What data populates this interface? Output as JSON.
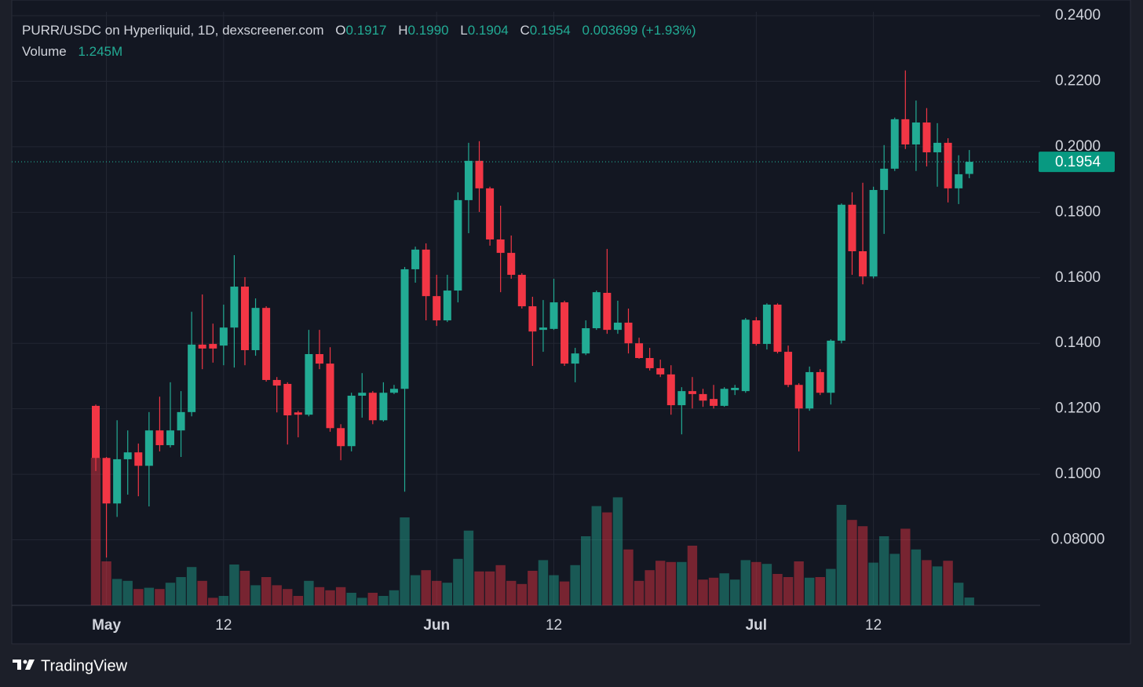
{
  "header": {
    "title": "PURR/USDC on Hyperliquid, 1D, dexscreener.com",
    "open_label": "O",
    "open": "0.1917",
    "high_label": "H",
    "high": "0.1990",
    "low_label": "L",
    "low": "0.1904",
    "close_label": "C",
    "close": "0.1954",
    "change": "0.003699 (+1.93%)",
    "volume_label": "Volume",
    "volume": "1.245M"
  },
  "brand": "TradingView",
  "chart_data": {
    "type": "candlestick",
    "categories": [
      null,
      "May",
      null,
      null,
      null,
      null,
      null,
      null,
      null,
      null,
      null,
      null,
      "12",
      null,
      null,
      null,
      null,
      null,
      null,
      null,
      null,
      null,
      null,
      null,
      null,
      null,
      null,
      null,
      null,
      null,
      null,
      null,
      "Jun",
      null,
      null,
      null,
      null,
      null,
      null,
      null,
      null,
      null,
      null,
      "12",
      null,
      null,
      null,
      null,
      null,
      null,
      null,
      null,
      null,
      null,
      null,
      null,
      null,
      null,
      null,
      null,
      null,
      null,
      "Jul",
      null,
      null,
      null,
      null,
      null,
      null,
      null,
      null,
      null,
      null,
      "12",
      null,
      null,
      null,
      null,
      null,
      null,
      null,
      null,
      null
    ],
    "open": [
      0.1209,
      0.105,
      0.0911,
      0.1046,
      0.1067,
      0.1026,
      0.1134,
      0.1089,
      0.1134,
      0.119,
      0.1396,
      0.1398,
      0.1393,
      0.1448,
      0.1573,
      0.1379,
      0.1508,
      0.1288,
      0.1276,
      0.1189,
      0.1182,
      0.1367,
      0.1338,
      0.1141,
      0.1086,
      0.124,
      0.1249,
      0.1165,
      0.1249,
      0.1261,
      0.1626,
      0.1686,
      0.1544,
      0.147,
      0.1561,
      0.1837,
      0.1957,
      0.1873,
      0.1717,
      0.1676,
      0.1609,
      0.1513,
      0.1441,
      0.1444,
      0.1525,
      0.1338,
      0.1369,
      0.1446,
      0.1554,
      0.1441,
      0.1463,
      0.14,
      0.1355,
      0.1324,
      0.1305,
      0.1211,
      0.1254,
      0.1245,
      0.123,
      0.1209,
      0.1257,
      0.1254,
      0.147,
      0.1398,
      0.1518,
      0.1374,
      0.1273,
      0.1201,
      0.1312,
      0.1249,
      0.1408,
      0.1823,
      0.1681,
      0.1604,
      0.1868,
      0.1933,
      0.2084,
      0.2007,
      0.2074,
      0.1983,
      0.2012,
      0.1873,
      0.1917
    ],
    "high": [
      0.1213,
      0.1053,
      0.1165,
      0.1134,
      0.1094,
      0.119,
      0.1237,
      0.1281,
      0.1254,
      0.1496,
      0.1549,
      0.146,
      0.1518,
      0.1669,
      0.1602,
      0.1537,
      0.1513,
      0.1297,
      0.1281,
      0.1194,
      0.1441,
      0.1441,
      0.1388,
      0.1153,
      0.1249,
      0.1309,
      0.1254,
      0.1281,
      0.1273,
      0.1633,
      0.1695,
      0.1705,
      0.1609,
      0.1609,
      0.1861,
      0.2012,
      0.2017,
      0.1878,
      0.182,
      0.1729,
      0.1614,
      0.1542,
      0.1532,
      0.1597,
      0.153,
      0.1386,
      0.147,
      0.1561,
      0.1688,
      0.153,
      0.1506,
      0.1417,
      0.1386,
      0.135,
      0.1333,
      0.1266,
      0.1297,
      0.1261,
      0.1273,
      0.1266,
      0.1273,
      0.1477,
      0.148,
      0.1522,
      0.1522,
      0.1393,
      0.1278,
      0.1329,
      0.1321,
      0.1412,
      0.1827,
      0.1861,
      0.189,
      0.1878,
      0.2005,
      0.2089,
      0.2233,
      0.2141,
      0.2118,
      0.2072,
      0.2026,
      0.1974,
      0.199
    ],
    "low": [
      0.101,
      0.0746,
      0.087,
      0.0938,
      0.0933,
      0.0902,
      0.107,
      0.1082,
      0.1053,
      0.1177,
      0.1321,
      0.1341,
      0.1333,
      0.1326,
      0.1333,
      0.1362,
      0.1283,
      0.1189,
      0.1091,
      0.1113,
      0.1177,
      0.1321,
      0.113,
      0.1043,
      0.107,
      0.1173,
      0.1153,
      0.1161,
      0.1245,
      0.0947,
      0.1585,
      0.147,
      0.1453,
      0.1465,
      0.1525,
      0.1736,
      0.1801,
      0.1698,
      0.1556,
      0.1597,
      0.1506,
      0.1331,
      0.1374,
      0.1441,
      0.1331,
      0.1281,
      0.1364,
      0.1441,
      0.1429,
      0.1429,
      0.1369,
      0.1353,
      0.1317,
      0.1297,
      0.1182,
      0.1122,
      0.1201,
      0.1206,
      0.1201,
      0.1206,
      0.1242,
      0.1249,
      0.1393,
      0.1381,
      0.1369,
      0.1266,
      0.107,
      0.1194,
      0.1242,
      0.1213,
      0.14,
      0.1609,
      0.158,
      0.1598,
      0.1734,
      0.1926,
      0.1993,
      0.1926,
      0.194,
      0.1878,
      0.183,
      0.1825,
      0.1904
    ],
    "close": [
      0.105,
      0.0911,
      0.1046,
      0.1067,
      0.1026,
      0.1134,
      0.1089,
      0.1134,
      0.119,
      0.1396,
      0.1384,
      0.1384,
      0.1448,
      0.1573,
      0.1379,
      0.1508,
      0.1288,
      0.1271,
      0.118,
      0.1182,
      0.1367,
      0.1338,
      0.1141,
      0.1086,
      0.124,
      0.1249,
      0.1165,
      0.1249,
      0.1261,
      0.1626,
      0.1686,
      0.1544,
      0.147,
      0.1561,
      0.1837,
      0.1957,
      0.1873,
      0.1717,
      0.1676,
      0.1609,
      0.1513,
      0.1436,
      0.1448,
      0.1525,
      0.1338,
      0.1369,
      0.1446,
      0.1556,
      0.1441,
      0.1463,
      0.14,
      0.1355,
      0.1324,
      0.1305,
      0.1211,
      0.1254,
      0.1245,
      0.1225,
      0.1209,
      0.1261,
      0.1264,
      0.1472,
      0.1398,
      0.1518,
      0.1374,
      0.1273,
      0.1201,
      0.1312,
      0.1249,
      0.1408,
      0.1823,
      0.1681,
      0.1604,
      0.1868,
      0.1933,
      0.2084,
      0.2007,
      0.2074,
      0.1983,
      0.2012,
      0.1873,
      0.1916,
      0.1954
    ],
    "volume": [
      23.5,
      7.0,
      4.2,
      3.9,
      2.6,
      2.8,
      2.6,
      3.6,
      4.5,
      6.1,
      3.9,
      1.2,
      1.5,
      6.5,
      5.5,
      3.2,
      4.5,
      3.2,
      2.6,
      1.5,
      3.9,
      2.9,
      2.4,
      2.9,
      2.0,
      1.2,
      2.0,
      1.5,
      2.4,
      14.0,
      4.8,
      5.6,
      3.9,
      3.6,
      7.4,
      11.9,
      5.4,
      5.4,
      6.4,
      3.9,
      3.4,
      5.5,
      7.2,
      4.8,
      3.8,
      6.4,
      11.0,
      15.8,
      14.8,
      17.2,
      8.9,
      3.9,
      5.6,
      7.1,
      6.9,
      6.9,
      9.5,
      4.1,
      4.4,
      5.1,
      4.1,
      7.2,
      6.9,
      6.6,
      5.0,
      4.5,
      7.0,
      4.4,
      4.5,
      5.8,
      16.0,
      13.6,
      12.6,
      6.8,
      11.0,
      8.2,
      12.2,
      8.9,
      7.2,
      6.2,
      7.1,
      3.6,
      1.245
    ],
    "up_color": "#22ab94",
    "down_color": "#f23645",
    "ylim": [
      0.06,
      0.2412
    ],
    "yticks": [
      {
        "value": 0.08,
        "label": "0.08000"
      },
      {
        "value": 0.1,
        "label": "0.1000"
      },
      {
        "value": 0.12,
        "label": "0.1200"
      },
      {
        "value": 0.14,
        "label": "0.1400"
      },
      {
        "value": 0.16,
        "label": "0.1600"
      },
      {
        "value": 0.18,
        "label": "0.1800"
      },
      {
        "value": 0.2,
        "label": "0.2000"
      },
      {
        "value": 0.22,
        "label": "0.2200"
      },
      {
        "value": 0.24,
        "label": "0.2400"
      }
    ],
    "volume_lim": [
      0,
      30
    ],
    "grid": true
  }
}
